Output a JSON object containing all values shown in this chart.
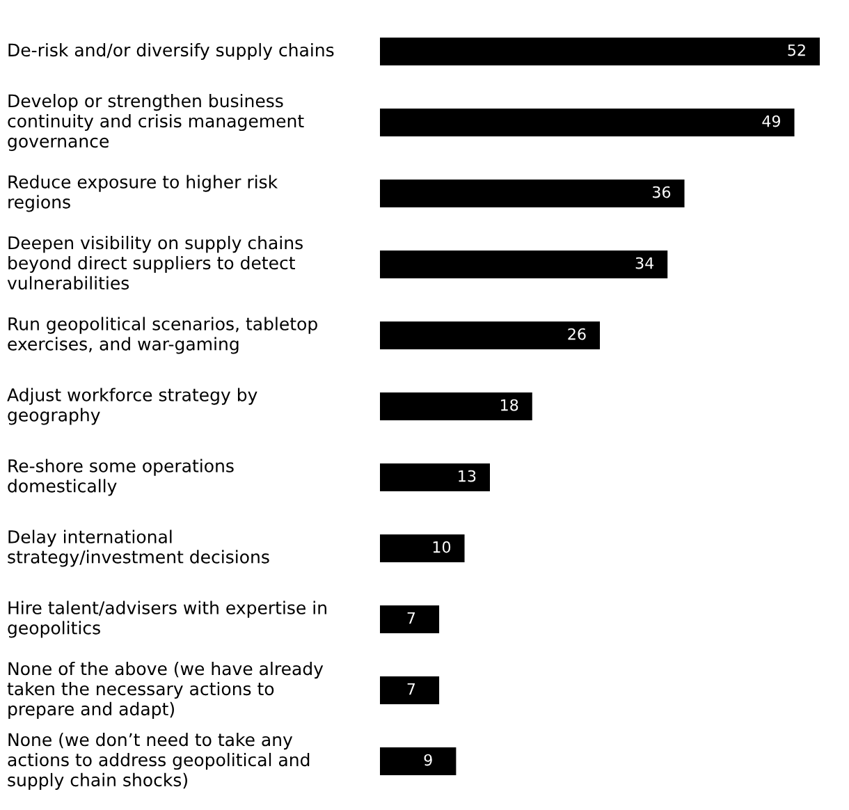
{
  "chart_data": {
    "type": "bar",
    "orientation": "horizontal",
    "color": "#000000",
    "data_labels": true,
    "categories": [
      "De-risk and/or diversify supply chains",
      "Develop or strengthen business continuity and crisis management governance",
      "Reduce exposure to higher risk regions",
      "Deepen visibility on supply chains beyond direct suppliers to detect vulnerabilities",
      "Run geopolitical scenarios, tabletop exercises, and war-gaming",
      "Adjust workforce strategy by geography",
      "Re-shore some operations domestically",
      "Delay international strategy/investment decisions",
      "Hire talent/advisers with expertise in geopolitics",
      "None of the above (we have already taken the necessary actions to prepare and adapt)",
      "None (we don’t need to take any actions to address geopolitical and supply chain shocks)"
    ],
    "values": [
      52,
      49,
      36,
      34,
      26,
      18,
      13,
      10,
      7,
      7,
      9
    ]
  }
}
